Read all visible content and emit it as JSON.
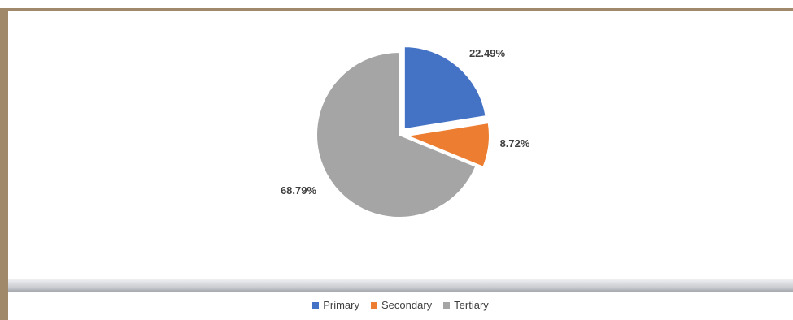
{
  "chart_data": {
    "type": "pie",
    "series": [
      {
        "label": "Primary",
        "value": 22.49,
        "display": "22.49%",
        "color": "#4472c4",
        "exploded": true
      },
      {
        "label": "Secondary",
        "value": 8.72,
        "display": "8.72%",
        "color": "#ed7d31",
        "exploded": true
      },
      {
        "label": "Tertiary",
        "value": 68.79,
        "display": "68.79%",
        "color": "#a5a5a5",
        "exploded": false
      }
    ],
    "legend_position": "bottom",
    "start_angle": "12 o'clock",
    "direction": "clockwise"
  },
  "colors": {
    "frame_border": "#a0896b",
    "plot_background": "#ffffff"
  }
}
